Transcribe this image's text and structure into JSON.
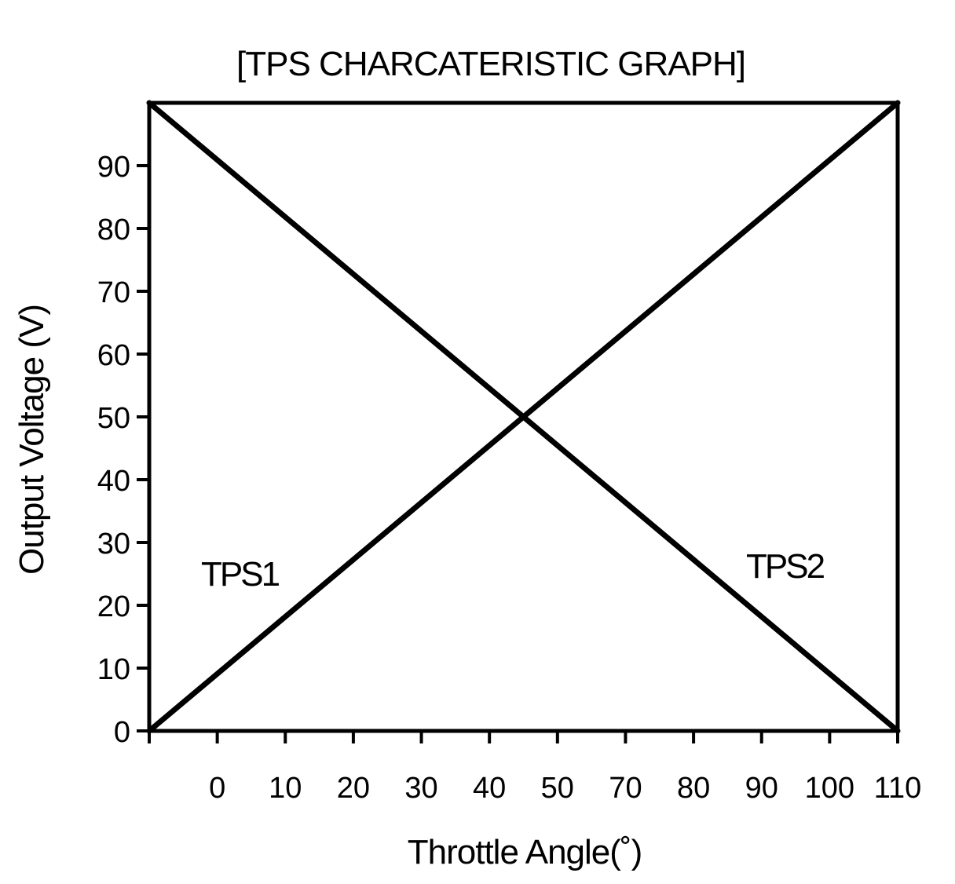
{
  "chart_data": {
    "type": "line",
    "title": "[TPS CHARCATERISTIC GRAPH]",
    "xlabel": "Throttle Angle(˚)",
    "ylabel": "Output Voltage (V)",
    "x_tick_labels": [
      "0",
      "10",
      "20",
      "30",
      "40",
      "50",
      "70",
      "80",
      "90",
      "100",
      "110"
    ],
    "y_ticks": [
      0,
      10,
      20,
      30,
      40,
      50,
      60,
      70,
      80,
      90
    ],
    "y_tick_labels": [
      "0",
      "10",
      "20",
      "30",
      "40",
      "50",
      "60",
      "70",
      "80",
      "90"
    ],
    "ylim": [
      0,
      100
    ],
    "grid": false,
    "series": [
      {
        "name": "TPS1",
        "x": [
          "-10",
          "110"
        ],
        "values": [
          0,
          100
        ]
      },
      {
        "name": "TPS2",
        "x": [
          "-10",
          "110"
        ],
        "values": [
          100,
          0
        ]
      }
    ],
    "line_color": "#000000"
  }
}
